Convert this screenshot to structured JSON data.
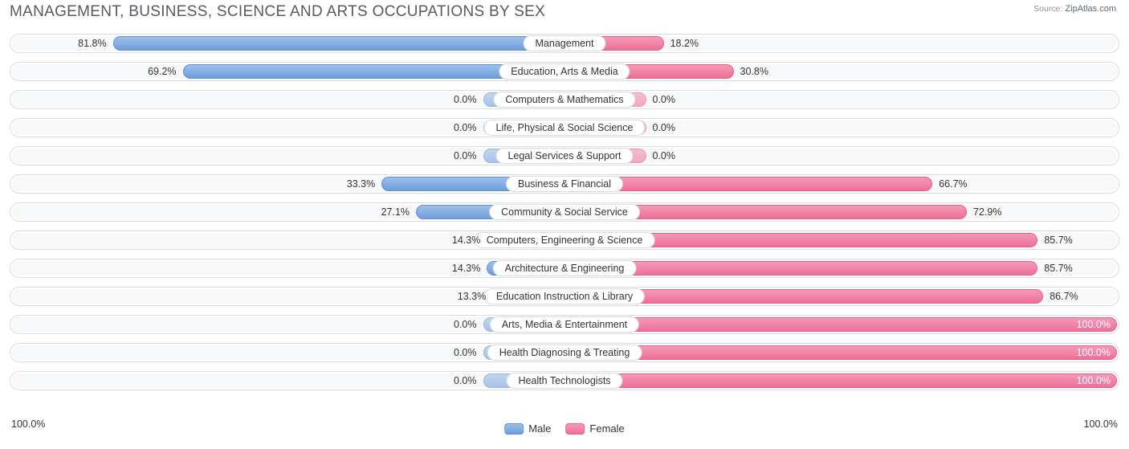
{
  "title": "MANAGEMENT, BUSINESS, SCIENCE AND ARTS OCCUPATIONS BY SEX",
  "source_label": "Source:",
  "source_value": "ZipAtlas.com",
  "axis": {
    "left": "100.0%",
    "right": "100.0%"
  },
  "legend": {
    "male": {
      "label": "Male",
      "color": "#7ba6de",
      "border": "#5f90d3"
    },
    "female": {
      "label": "Female",
      "color": "#ef7ea2",
      "border": "#e75e8a"
    }
  },
  "chart": {
    "type": "diverging-bar",
    "background_color": "#ffffff",
    "row_bg": "#f7f8f9",
    "row_border": "#d7dcdf",
    "default_bar_pct": 15,
    "male_gradient": [
      "#9dbfe9",
      "#6f9edc"
    ],
    "female_gradient": [
      "#f49ab6",
      "#ee6f98"
    ],
    "male_default_gradient": [
      "#c1d5ef",
      "#a7c3e8"
    ],
    "female_default_gradient": [
      "#f4bdce",
      "#f1a8c0"
    ],
    "rows": [
      {
        "label": "Management",
        "male": 81.8,
        "female": 18.2,
        "male_txt": "81.8%",
        "female_txt": "18.2%",
        "neutral": false
      },
      {
        "label": "Education, Arts & Media",
        "male": 69.2,
        "female": 30.8,
        "male_txt": "69.2%",
        "female_txt": "30.8%",
        "neutral": false
      },
      {
        "label": "Computers & Mathematics",
        "male": 0.0,
        "female": 0.0,
        "male_txt": "0.0%",
        "female_txt": "0.0%",
        "neutral": true
      },
      {
        "label": "Life, Physical & Social Science",
        "male": 0.0,
        "female": 0.0,
        "male_txt": "0.0%",
        "female_txt": "0.0%",
        "neutral": true
      },
      {
        "label": "Legal Services & Support",
        "male": 0.0,
        "female": 0.0,
        "male_txt": "0.0%",
        "female_txt": "0.0%",
        "neutral": true
      },
      {
        "label": "Business & Financial",
        "male": 33.3,
        "female": 66.7,
        "male_txt": "33.3%",
        "female_txt": "66.7%",
        "neutral": false
      },
      {
        "label": "Community & Social Service",
        "male": 27.1,
        "female": 72.9,
        "male_txt": "27.1%",
        "female_txt": "72.9%",
        "neutral": false
      },
      {
        "label": "Computers, Engineering & Science",
        "male": 14.3,
        "female": 85.7,
        "male_txt": "14.3%",
        "female_txt": "85.7%",
        "neutral": false
      },
      {
        "label": "Architecture & Engineering",
        "male": 14.3,
        "female": 85.7,
        "male_txt": "14.3%",
        "female_txt": "85.7%",
        "neutral": false
      },
      {
        "label": "Education Instruction & Library",
        "male": 13.3,
        "female": 86.7,
        "male_txt": "13.3%",
        "female_txt": "86.7%",
        "neutral": false
      },
      {
        "label": "Arts, Media & Entertainment",
        "male": 0.0,
        "female": 100.0,
        "male_txt": "0.0%",
        "female_txt": "100.0%",
        "neutral": false
      },
      {
        "label": "Health Diagnosing & Treating",
        "male": 0.0,
        "female": 100.0,
        "male_txt": "0.0%",
        "female_txt": "100.0%",
        "neutral": false
      },
      {
        "label": "Health Technologists",
        "male": 0.0,
        "female": 100.0,
        "male_txt": "0.0%",
        "female_txt": "100.0%",
        "neutral": false
      }
    ]
  }
}
